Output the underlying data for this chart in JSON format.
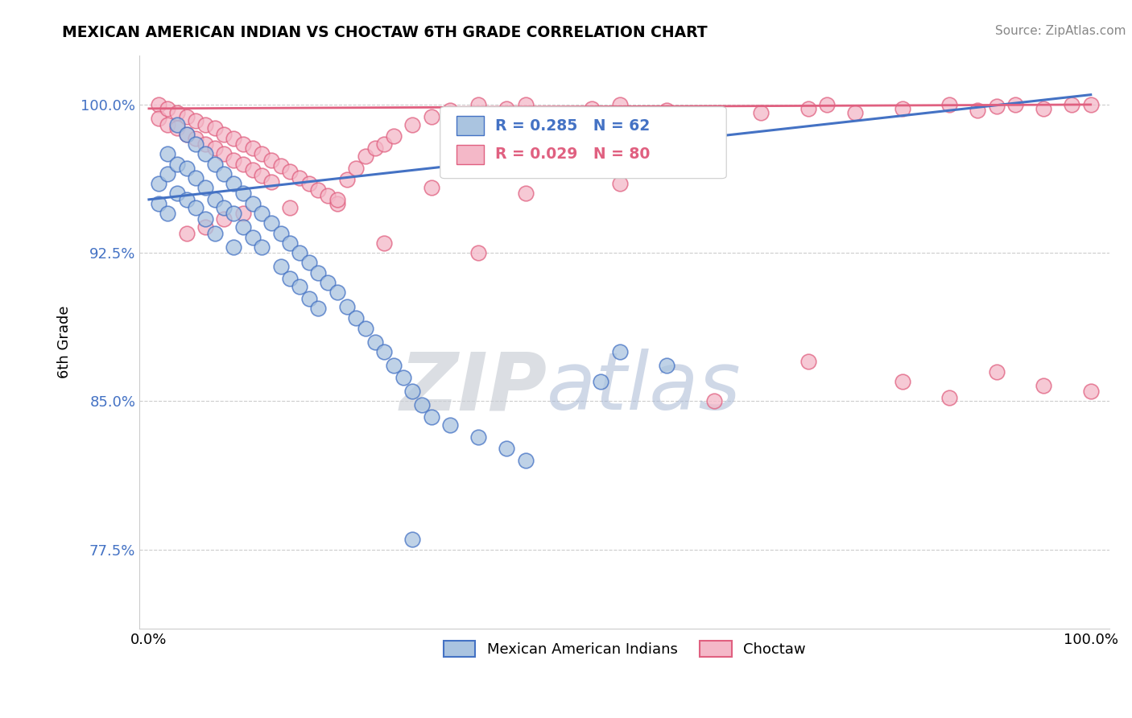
{
  "title": "MEXICAN AMERICAN INDIAN VS CHOCTAW 6TH GRADE CORRELATION CHART",
  "source": "Source: ZipAtlas.com",
  "ylabel": "6th Grade",
  "xlim": [
    -0.01,
    1.02
  ],
  "ylim": [
    0.735,
    1.025
  ],
  "yticks": [
    0.775,
    0.85,
    0.925,
    1.0
  ],
  "ytick_labels": [
    "77.5%",
    "85.0%",
    "92.5%",
    "100.0%"
  ],
  "xtick_labels": [
    "0.0%",
    "100.0%"
  ],
  "xticks": [
    0.0,
    1.0
  ],
  "legend_text_blue": "R = 0.285   N = 62",
  "legend_text_pink": "R = 0.029   N = 80",
  "legend_blue_label": "Mexican American Indians",
  "legend_pink_label": "Choctaw",
  "blue_face": "#aac4e0",
  "blue_edge": "#4472c4",
  "pink_face": "#f4b8c8",
  "pink_edge": "#e06080",
  "trendline_blue_color": "#4472c4",
  "trendline_pink_color": "#e06080",
  "blue_x": [
    0.01,
    0.01,
    0.02,
    0.02,
    0.02,
    0.03,
    0.03,
    0.03,
    0.04,
    0.04,
    0.04,
    0.05,
    0.05,
    0.05,
    0.06,
    0.06,
    0.06,
    0.07,
    0.07,
    0.07,
    0.08,
    0.08,
    0.09,
    0.09,
    0.09,
    0.1,
    0.1,
    0.11,
    0.11,
    0.12,
    0.12,
    0.13,
    0.14,
    0.14,
    0.15,
    0.15,
    0.16,
    0.16,
    0.17,
    0.17,
    0.18,
    0.18,
    0.19,
    0.2,
    0.21,
    0.22,
    0.23,
    0.24,
    0.25,
    0.26,
    0.27,
    0.28,
    0.29,
    0.3,
    0.32,
    0.35,
    0.38,
    0.4,
    0.48,
    0.5,
    0.55,
    0.28
  ],
  "blue_y": [
    0.96,
    0.95,
    0.975,
    0.965,
    0.945,
    0.99,
    0.97,
    0.955,
    0.985,
    0.968,
    0.952,
    0.98,
    0.963,
    0.948,
    0.975,
    0.958,
    0.942,
    0.97,
    0.952,
    0.935,
    0.965,
    0.948,
    0.96,
    0.945,
    0.928,
    0.955,
    0.938,
    0.95,
    0.933,
    0.945,
    0.928,
    0.94,
    0.935,
    0.918,
    0.93,
    0.912,
    0.925,
    0.908,
    0.92,
    0.902,
    0.915,
    0.897,
    0.91,
    0.905,
    0.898,
    0.892,
    0.887,
    0.88,
    0.875,
    0.868,
    0.862,
    0.855,
    0.848,
    0.842,
    0.838,
    0.832,
    0.826,
    0.82,
    0.86,
    0.875,
    0.868,
    0.78
  ],
  "pink_x": [
    0.01,
    0.01,
    0.02,
    0.02,
    0.03,
    0.03,
    0.04,
    0.04,
    0.05,
    0.05,
    0.06,
    0.06,
    0.07,
    0.07,
    0.08,
    0.08,
    0.09,
    0.09,
    0.1,
    0.1,
    0.11,
    0.11,
    0.12,
    0.12,
    0.13,
    0.13,
    0.14,
    0.15,
    0.16,
    0.17,
    0.18,
    0.19,
    0.2,
    0.21,
    0.22,
    0.23,
    0.24,
    0.25,
    0.26,
    0.28,
    0.3,
    0.32,
    0.35,
    0.38,
    0.4,
    0.45,
    0.47,
    0.5,
    0.55,
    0.6,
    0.65,
    0.7,
    0.72,
    0.75,
    0.8,
    0.85,
    0.88,
    0.9,
    0.92,
    0.95,
    0.98,
    1.0,
    0.5,
    0.3,
    0.4,
    0.2,
    0.15,
    0.1,
    0.08,
    0.06,
    0.04,
    0.25,
    0.35,
    0.6,
    0.7,
    0.8,
    0.9,
    0.95,
    1.0,
    0.85
  ],
  "pink_y": [
    1.0,
    0.993,
    0.998,
    0.99,
    0.996,
    0.988,
    0.994,
    0.985,
    0.992,
    0.983,
    0.99,
    0.98,
    0.988,
    0.978,
    0.985,
    0.975,
    0.983,
    0.972,
    0.98,
    0.97,
    0.978,
    0.967,
    0.975,
    0.964,
    0.972,
    0.961,
    0.969,
    0.966,
    0.963,
    0.96,
    0.957,
    0.954,
    0.95,
    0.962,
    0.968,
    0.974,
    0.978,
    0.98,
    0.984,
    0.99,
    0.994,
    0.997,
    1.0,
    0.998,
    1.0,
    0.995,
    0.998,
    1.0,
    0.997,
    0.994,
    0.996,
    0.998,
    1.0,
    0.996,
    0.998,
    1.0,
    0.997,
    0.999,
    1.0,
    0.998,
    1.0,
    1.0,
    0.96,
    0.958,
    0.955,
    0.952,
    0.948,
    0.945,
    0.942,
    0.938,
    0.935,
    0.93,
    0.925,
    0.85,
    0.87,
    0.86,
    0.865,
    0.858,
    0.855,
    0.852
  ],
  "trendline_blue_x0": 0.0,
  "trendline_blue_y0": 0.952,
  "trendline_blue_x1": 1.0,
  "trendline_blue_y1": 1.005,
  "trendline_pink_x0": 0.0,
  "trendline_pink_y0": 0.998,
  "trendline_pink_x1": 1.0,
  "trendline_pink_y1": 1.0
}
